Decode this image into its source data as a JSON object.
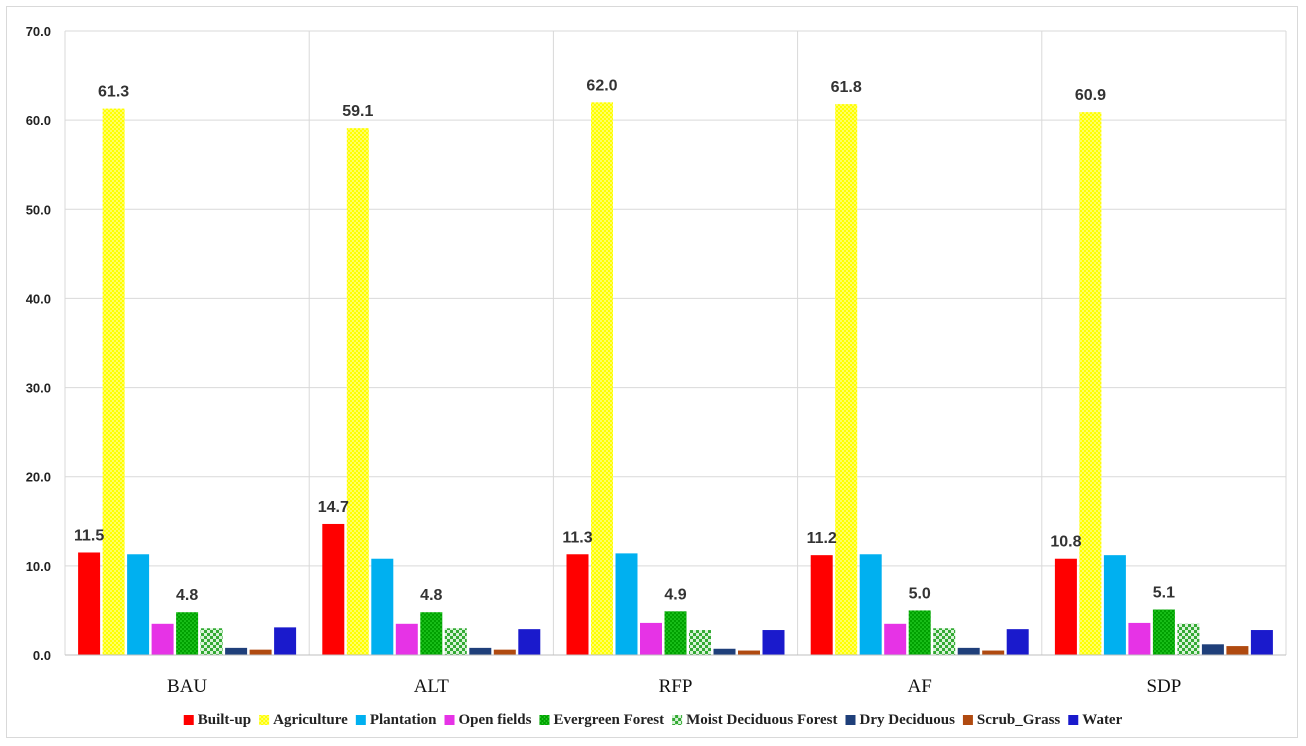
{
  "chart_data": {
    "type": "bar",
    "categories": [
      "BAU",
      "ALT",
      "RFP",
      "AF",
      "SDP"
    ],
    "ylim": [
      0,
      70
    ],
    "yticks": [
      "0.0",
      "10.0",
      "20.0",
      "30.0",
      "40.0",
      "50.0",
      "60.0",
      "70.0"
    ],
    "grid": true,
    "legend_position": "bottom",
    "series": [
      {
        "name": "Built-up",
        "color": "#ff0000",
        "pattern": "solid",
        "values": [
          11.5,
          14.7,
          11.3,
          11.2,
          10.8
        ],
        "labels": [
          "11.5",
          "14.7",
          "11.3",
          "11.2",
          "10.8"
        ]
      },
      {
        "name": "Agriculture",
        "color": "#ffff33",
        "pattern": "dotted",
        "values": [
          61.3,
          59.1,
          62.0,
          61.8,
          60.9
        ],
        "labels": [
          "61.3",
          "59.1",
          "62.0",
          "61.8",
          "60.9"
        ]
      },
      {
        "name": "Plantation",
        "color": "#00b0f0",
        "pattern": "solid",
        "values": [
          11.3,
          10.8,
          11.4,
          11.3,
          11.2
        ]
      },
      {
        "name": "Open fields",
        "color": "#e633e6",
        "pattern": "solid",
        "values": [
          3.5,
          3.5,
          3.6,
          3.5,
          3.6
        ]
      },
      {
        "name": "Evergreen Forest",
        "color": "#00a000",
        "pattern": "dotted",
        "values": [
          4.8,
          4.8,
          4.9,
          5.0,
          5.1
        ],
        "labels": [
          "4.8",
          "4.8",
          "4.9",
          "5.0",
          "5.1"
        ]
      },
      {
        "name": "Moist Deciduous Forest",
        "color": "#66cc66",
        "pattern": "checker",
        "values": [
          3.0,
          3.0,
          2.8,
          3.0,
          3.5
        ]
      },
      {
        "name": "Dry Deciduous",
        "color": "#1f3f7a",
        "pattern": "solid",
        "values": [
          0.8,
          0.8,
          0.7,
          0.8,
          1.2
        ]
      },
      {
        "name": "Scrub_Grass",
        "color": "#b04a10",
        "pattern": "solid",
        "values": [
          0.6,
          0.6,
          0.5,
          0.5,
          1.0
        ]
      },
      {
        "name": "Water",
        "color": "#1a1acc",
        "pattern": "solid",
        "values": [
          3.1,
          2.9,
          2.8,
          2.9,
          2.8
        ]
      }
    ]
  }
}
